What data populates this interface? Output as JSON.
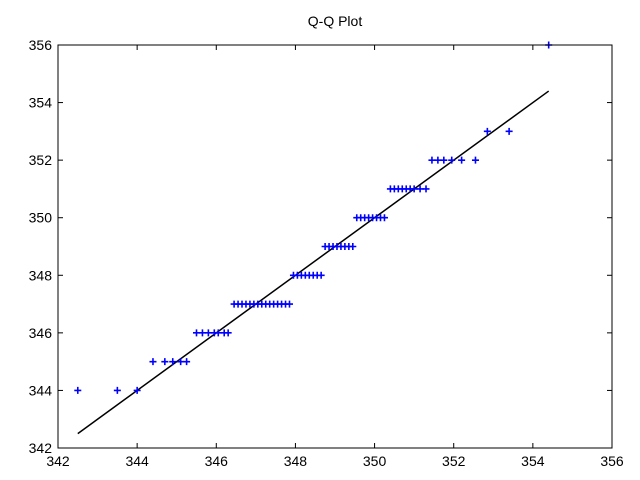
{
  "chart_data": {
    "type": "scatter",
    "title": "Q-Q Plot",
    "xlabel": "",
    "ylabel": "",
    "xlim": [
      342,
      356
    ],
    "ylim": [
      342,
      356
    ],
    "xticks": [
      342,
      344,
      346,
      348,
      350,
      352,
      354,
      356
    ],
    "yticks": [
      342,
      344,
      346,
      348,
      350,
      352,
      354,
      356
    ],
    "grid": false,
    "marker_color": "#0000ff",
    "line_color": "#000000",
    "points": [
      [
        342.5,
        344
      ],
      [
        343.5,
        344
      ],
      [
        344.0,
        344
      ],
      [
        344.4,
        345
      ],
      [
        344.7,
        345
      ],
      [
        344.9,
        345
      ],
      [
        345.1,
        345
      ],
      [
        345.25,
        345
      ],
      [
        345.5,
        346
      ],
      [
        345.65,
        346
      ],
      [
        345.8,
        346
      ],
      [
        345.95,
        346
      ],
      [
        346.05,
        346
      ],
      [
        346.2,
        346
      ],
      [
        346.3,
        346
      ],
      [
        346.45,
        347
      ],
      [
        346.55,
        347
      ],
      [
        346.65,
        347
      ],
      [
        346.75,
        347
      ],
      [
        346.85,
        347
      ],
      [
        346.95,
        347
      ],
      [
        347.05,
        347
      ],
      [
        347.15,
        347
      ],
      [
        347.25,
        347
      ],
      [
        347.35,
        347
      ],
      [
        347.45,
        347
      ],
      [
        347.55,
        347
      ],
      [
        347.65,
        347
      ],
      [
        347.75,
        347
      ],
      [
        347.85,
        347
      ],
      [
        347.95,
        348
      ],
      [
        348.05,
        348
      ],
      [
        348.15,
        348
      ],
      [
        348.25,
        348
      ],
      [
        348.35,
        348
      ],
      [
        348.45,
        348
      ],
      [
        348.55,
        348
      ],
      [
        348.65,
        348
      ],
      [
        348.75,
        349
      ],
      [
        348.85,
        349
      ],
      [
        348.95,
        349
      ],
      [
        349.05,
        349
      ],
      [
        349.15,
        349
      ],
      [
        349.25,
        349
      ],
      [
        349.35,
        349
      ],
      [
        349.45,
        349
      ],
      [
        349.55,
        350
      ],
      [
        349.65,
        350
      ],
      [
        349.75,
        350
      ],
      [
        349.85,
        350
      ],
      [
        349.95,
        350
      ],
      [
        350.05,
        350
      ],
      [
        350.15,
        350
      ],
      [
        350.25,
        350
      ],
      [
        350.4,
        351
      ],
      [
        350.5,
        351
      ],
      [
        350.6,
        351
      ],
      [
        350.7,
        351
      ],
      [
        350.8,
        351
      ],
      [
        350.9,
        351
      ],
      [
        351.0,
        351
      ],
      [
        351.15,
        351
      ],
      [
        351.3,
        351
      ],
      [
        351.45,
        352
      ],
      [
        351.6,
        352
      ],
      [
        351.75,
        352
      ],
      [
        351.95,
        352
      ],
      [
        352.2,
        352
      ],
      [
        352.55,
        352
      ],
      [
        352.85,
        353
      ],
      [
        353.4,
        353
      ],
      [
        354.4,
        356
      ]
    ],
    "reference_line": {
      "x": [
        342.5,
        354.4
      ],
      "y": [
        342.5,
        354.4
      ]
    }
  }
}
